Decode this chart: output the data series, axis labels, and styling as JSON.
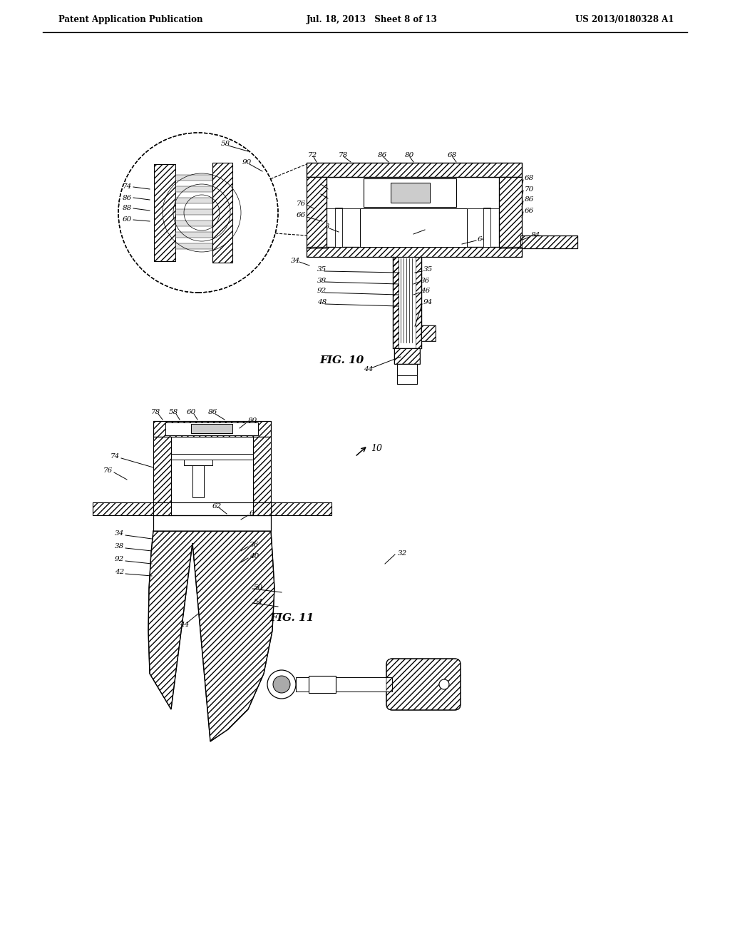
{
  "background_color": "#ffffff",
  "header_left": "Patent Application Publication",
  "header_center": "Jul. 18, 2013   Sheet 8 of 13",
  "header_right": "US 2013/0180328 A1",
  "fig10_label": "FIG. 10",
  "fig11_label": "FIG. 11",
  "lc": "#000000",
  "tc": "#000000"
}
